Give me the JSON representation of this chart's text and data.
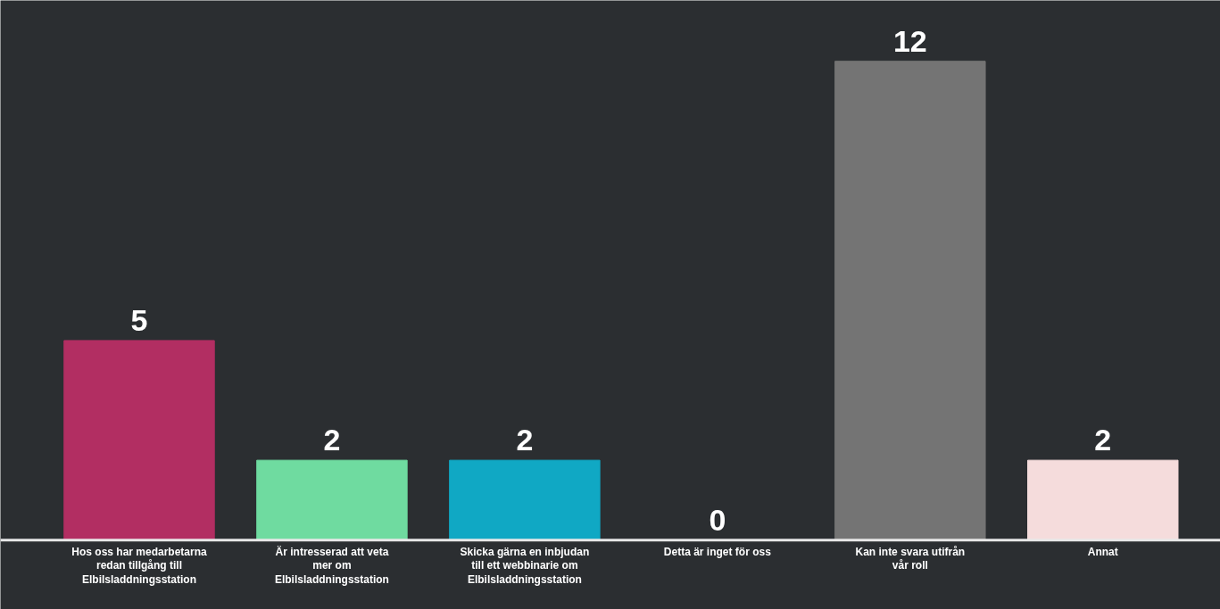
{
  "chart_data": {
    "type": "bar",
    "categories": [
      "Hos oss har medarbetarna redan tillgång till Elbilsladdningsstation",
      "Är intresserad att veta mer om Elbilsladdningsstation",
      "Skicka gärna en inbjudan till ett webbinarie om Elbilsladdningsstation",
      "Detta är inget för oss",
      "Kan inte svara utifrån vår roll",
      "Annat"
    ],
    "values": [
      5,
      2,
      2,
      0,
      12,
      2
    ],
    "colors": [
      "#b22e62",
      "#6fdba0",
      "#10a8c4",
      "#6fdba0",
      "#747474",
      "#f5dcdc"
    ],
    "data_labels": true
  }
}
